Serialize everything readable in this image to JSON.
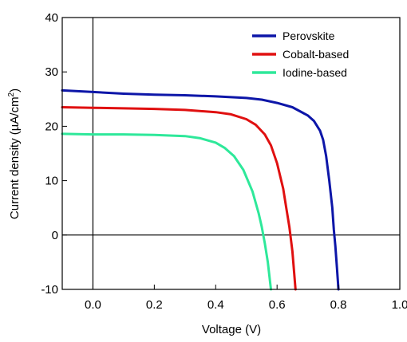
{
  "chart_data": {
    "type": "line",
    "xlabel": "Voltage (V)",
    "ylabel": {
      "main": "Current density (µA/cm",
      "sup": "2",
      "close": ")"
    },
    "xlim": [
      -0.1,
      1.0
    ],
    "ylim": [
      -10,
      40
    ],
    "x_ticks": [
      0.0,
      0.2,
      0.4,
      0.6,
      0.8,
      1.0
    ],
    "x_tick_labels": [
      "0.0",
      "0.2",
      "0.4",
      "0.6",
      "0.8",
      "1.0"
    ],
    "y_ticks": [
      -10,
      0,
      10,
      20,
      30,
      40
    ],
    "y_tick_labels": [
      "-10",
      "0",
      "10",
      "20",
      "30",
      "40"
    ],
    "grid": false,
    "zero_lines": true,
    "legend_position": "top-right",
    "series": [
      {
        "name": "Perovskite",
        "color": "#0d16a8",
        "points": [
          [
            -0.1,
            26.6
          ],
          [
            0.0,
            26.3
          ],
          [
            0.1,
            26.0
          ],
          [
            0.2,
            25.8
          ],
          [
            0.3,
            25.7
          ],
          [
            0.4,
            25.5
          ],
          [
            0.5,
            25.2
          ],
          [
            0.55,
            24.9
          ],
          [
            0.6,
            24.3
          ],
          [
            0.65,
            23.5
          ],
          [
            0.7,
            22.0
          ],
          [
            0.72,
            21.0
          ],
          [
            0.74,
            19.2
          ],
          [
            0.75,
            17.5
          ],
          [
            0.76,
            14.5
          ],
          [
            0.77,
            10.0
          ],
          [
            0.78,
            5.0
          ],
          [
            0.785,
            1.0
          ],
          [
            0.79,
            -2.0
          ],
          [
            0.795,
            -6.0
          ],
          [
            0.8,
            -10.0
          ]
        ]
      },
      {
        "name": "Cobalt-based",
        "color": "#e01010",
        "points": [
          [
            -0.1,
            23.5
          ],
          [
            0.0,
            23.4
          ],
          [
            0.1,
            23.3
          ],
          [
            0.2,
            23.2
          ],
          [
            0.3,
            23.0
          ],
          [
            0.4,
            22.6
          ],
          [
            0.45,
            22.2
          ],
          [
            0.5,
            21.3
          ],
          [
            0.53,
            20.3
          ],
          [
            0.56,
            18.5
          ],
          [
            0.58,
            16.5
          ],
          [
            0.6,
            13.2
          ],
          [
            0.62,
            8.5
          ],
          [
            0.63,
            5.0
          ],
          [
            0.64,
            1.5
          ],
          [
            0.65,
            -3.0
          ],
          [
            0.66,
            -10.0
          ]
        ]
      },
      {
        "name": "Iodine-based",
        "color": "#2ee89a",
        "points": [
          [
            -0.1,
            18.6
          ],
          [
            0.0,
            18.5
          ],
          [
            0.1,
            18.5
          ],
          [
            0.2,
            18.4
          ],
          [
            0.3,
            18.2
          ],
          [
            0.35,
            17.8
          ],
          [
            0.4,
            17.0
          ],
          [
            0.43,
            16.0
          ],
          [
            0.46,
            14.5
          ],
          [
            0.49,
            12.0
          ],
          [
            0.52,
            8.0
          ],
          [
            0.54,
            4.0
          ],
          [
            0.55,
            1.5
          ],
          [
            0.56,
            -1.5
          ],
          [
            0.57,
            -5.0
          ],
          [
            0.58,
            -10.0
          ]
        ]
      }
    ]
  }
}
